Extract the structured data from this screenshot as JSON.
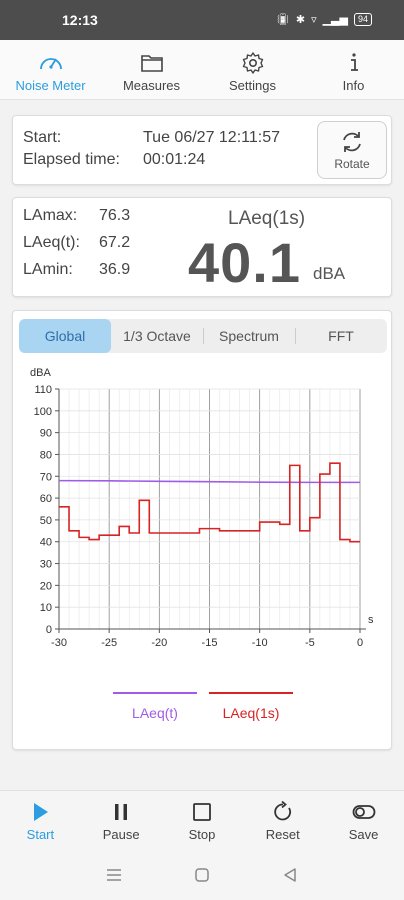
{
  "status": {
    "time": "12:13",
    "battery": "94"
  },
  "topnav": [
    {
      "label": "Noise Meter",
      "icon": "speedometer-icon",
      "active": true
    },
    {
      "label": "Measures",
      "icon": "folder-icon"
    },
    {
      "label": "Settings",
      "icon": "gear-icon"
    },
    {
      "label": "Info",
      "icon": "info-icon"
    }
  ],
  "session": {
    "start_label": "Start:",
    "start_value": "Tue 06/27 12:11:57",
    "elapsed_label": "Elapsed time:",
    "elapsed_value": "00:01:24",
    "rotate_label": "Rotate"
  },
  "levels": {
    "lamax_label": "LAmax:",
    "lamax_value": "76.3",
    "laeqt_label": "LAeq(t):",
    "laeqt_value": "67.2",
    "lamin_label": "LAmin:",
    "lamin_value": "36.9",
    "current_title": "LAeq(1s)",
    "current_value": "40.1",
    "current_unit": "dBA"
  },
  "tabs": [
    {
      "label": "Global",
      "active": true
    },
    {
      "label": "1/3 Octave"
    },
    {
      "label": "Spectrum"
    },
    {
      "label": "FFT"
    }
  ],
  "chart_data": {
    "type": "line",
    "ylabel": "dBA",
    "xlabel": "s",
    "xlim": [
      -30,
      0
    ],
    "ylim": [
      0,
      110
    ],
    "xticks": [
      -30,
      -25,
      -20,
      -15,
      -10,
      -5,
      0
    ],
    "yticks": [
      0,
      10,
      20,
      30,
      40,
      50,
      60,
      70,
      80,
      90,
      100,
      110
    ],
    "grid": true,
    "legend_position": "bottom",
    "series": [
      {
        "name": "LAeq(t)",
        "color": "#a05ce8",
        "step": false,
        "x": [
          -30,
          -25,
          -20,
          -15,
          -10,
          -5,
          0
        ],
        "y": [
          68.0,
          67.9,
          67.7,
          67.5,
          67.3,
          67.2,
          67.2
        ]
      },
      {
        "name": "LAeq(1s)",
        "color": "#d62424",
        "step": true,
        "x": [
          -30,
          -29,
          -28,
          -27,
          -26,
          -25,
          -24,
          -23,
          -22,
          -21,
          -20,
          -19,
          -18,
          -17,
          -16,
          -15,
          -14,
          -13,
          -12,
          -11,
          -10,
          -9,
          -8,
          -7,
          -6,
          -5,
          -4,
          -3,
          -2,
          -1,
          0
        ],
        "y": [
          56,
          45,
          42,
          41,
          43,
          43,
          47,
          44,
          59,
          44,
          44,
          44,
          44,
          44,
          46,
          46,
          45,
          45,
          45,
          45,
          49,
          49,
          48,
          75,
          45,
          51,
          71,
          76,
          41,
          40,
          40
        ]
      }
    ]
  },
  "bottomnav": [
    {
      "label": "Start",
      "icon": "play-icon",
      "active": true
    },
    {
      "label": "Pause",
      "icon": "pause-icon"
    },
    {
      "label": "Stop",
      "icon": "stop-icon"
    },
    {
      "label": "Reset",
      "icon": "reset-icon"
    },
    {
      "label": "Save",
      "icon": "save-toggle-icon"
    }
  ],
  "colors": {
    "accent": "#2b9de0",
    "tab_active": "#a9d4f2",
    "status_bar": "#4d4d4d"
  }
}
